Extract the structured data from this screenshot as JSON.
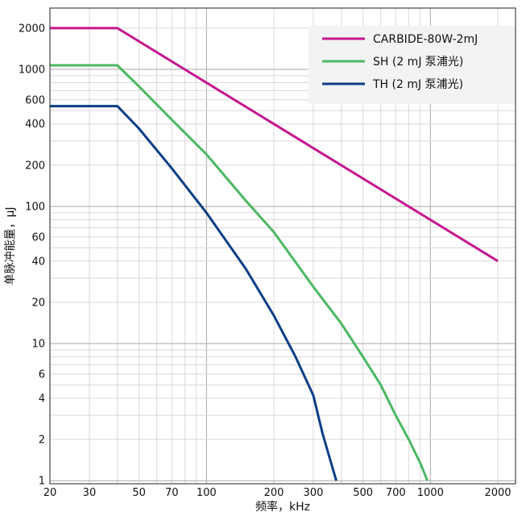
{
  "chart_data": {
    "type": "line",
    "title": "",
    "xlabel": "频率，kHz",
    "ylabel": "单脉冲能量，μJ",
    "x_scale": "log",
    "y_scale": "log",
    "xlim": [
      20,
      2400
    ],
    "ylim": [
      0.95,
      2800
    ],
    "grid": true,
    "legend_position": "top-right",
    "x_ticks": [
      20,
      30,
      50,
      70,
      100,
      200,
      300,
      500,
      700,
      1000,
      2000
    ],
    "x_tick_labels": [
      "20",
      "30",
      "50",
      "70",
      "100",
      "200",
      "300",
      "500",
      "700",
      "1000",
      "2000"
    ],
    "y_ticks": [
      1,
      2,
      4,
      6,
      10,
      20,
      40,
      60,
      100,
      200,
      400,
      600,
      1000,
      2000
    ],
    "y_tick_labels": [
      "1",
      "2",
      "4",
      "6",
      "10",
      "20",
      "40",
      "60",
      "100",
      "200",
      "400",
      "600",
      "1000",
      "2000"
    ],
    "series": [
      {
        "name": "CARBIDE-80W-2mJ",
        "color": "#c6178f",
        "x": [
          20,
          40,
          2000
        ],
        "y": [
          2000,
          2000,
          40
        ]
      },
      {
        "name": "SH (2 mJ 泵浦光)",
        "color": "#4cb862",
        "x": [
          20,
          40,
          50,
          70,
          100,
          150,
          200,
          300,
          400,
          500,
          600,
          700,
          800,
          900,
          970
        ],
        "y": [
          1070,
          1070,
          750,
          430,
          240,
          110,
          65,
          26,
          14,
          8,
          5,
          3,
          2,
          1.35,
          1.0
        ]
      },
      {
        "name": "TH (2 mJ 泵浦光)",
        "color": "#0c3e86",
        "x": [
          20,
          40,
          50,
          70,
          100,
          150,
          200,
          250,
          300,
          330,
          360,
          380
        ],
        "y": [
          540,
          540,
          370,
          190,
          90,
          35,
          16,
          8,
          4.2,
          2.2,
          1.35,
          1.0
        ]
      }
    ]
  }
}
